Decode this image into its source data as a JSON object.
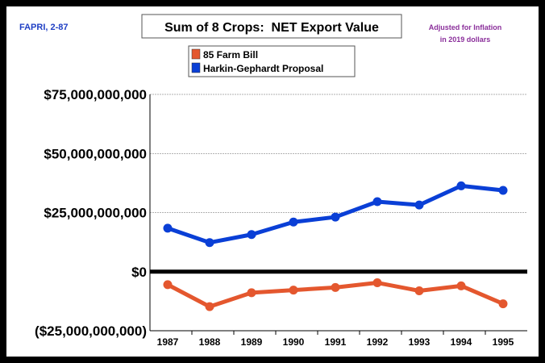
{
  "source_note": "FAPRI, 2-87",
  "inflation_note": [
    "Adjusted for Inflation",
    "in 2019 dollars"
  ],
  "colors": {
    "farm_bill": "#e4572e",
    "harkin": "#0a3fd6",
    "source": "#1f3fc4",
    "note": "#8a2e9a"
  },
  "chart_data": {
    "type": "line",
    "title": "Sum of 8 Crops:  NET Export Value",
    "xlabel": "",
    "ylabel": "",
    "ylim": [
      -25000000000,
      75000000000
    ],
    "y_ticks": [
      -25000000000,
      0,
      25000000000,
      50000000000,
      75000000000
    ],
    "y_tick_labels": [
      "($25,000,000,000)",
      "$0",
      "$25,000,000,000",
      "$50,000,000,000",
      "$75,000,000,000"
    ],
    "categories": [
      "1987",
      "1988",
      "1989",
      "1990",
      "1991",
      "1992",
      "1993",
      "1994",
      "1995"
    ],
    "grid": true,
    "legend_position": "top-center",
    "series": [
      {
        "name": "85 Farm Bill",
        "color": "#e4572e",
        "values": [
          -5500000000,
          -14800000000,
          -8900000000,
          -7800000000,
          -6700000000,
          -4700000000,
          -8100000000,
          -6000000000,
          -13600000000
        ]
      },
      {
        "name": "Harkin-Gephardt Proposal",
        "color": "#0a3fd6",
        "values": [
          18400000000,
          12300000000,
          15700000000,
          21000000000,
          23100000000,
          29600000000,
          28200000000,
          36300000000,
          34400000000
        ]
      }
    ]
  }
}
